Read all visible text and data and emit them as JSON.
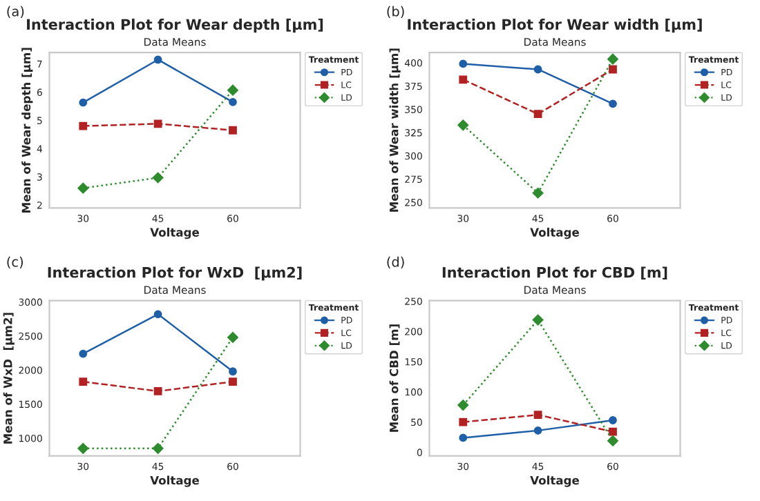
{
  "chart_data": [
    {
      "type": "line",
      "title": "Interaction Plot for Wear depth [µm]",
      "subtitle": "Data Means",
      "xlabel": "Voltage",
      "ylabel": "Mean of Wear depth [µm]",
      "legend_title": "Treatment",
      "annotations": [
        "(a)"
      ],
      "categories": [
        "30",
        "45",
        "60"
      ],
      "ylim": [
        1.9,
        7.4
      ],
      "yticks": [
        2,
        3,
        4,
        5,
        6,
        7
      ],
      "grid": false,
      "legend": "top right",
      "series": [
        {
          "name": "PD",
          "color": "#1f5fa8",
          "marker": "circle",
          "line_style": "solid",
          "values": [
            5.63,
            7.15,
            5.65
          ]
        },
        {
          "name": "LC",
          "color": "#b22222",
          "marker": "square",
          "line_style": "dashed",
          "values": [
            4.8,
            4.88,
            4.65
          ]
        },
        {
          "name": "LD",
          "color": "#2e8b2e",
          "marker": "diamond",
          "line_style": "dotted",
          "values": [
            2.6,
            2.97,
            6.07
          ]
        }
      ]
    },
    {
      "type": "line",
      "title": "Interaction Plot for Wear width [µm]",
      "subtitle": "Data Means",
      "xlabel": "Voltage",
      "ylabel": "Mean of Wear width [µm]",
      "legend_title": "Treatment",
      "annotations": [
        "(b)"
      ],
      "categories": [
        "30",
        "45",
        "60"
      ],
      "ylim": [
        244,
        411
      ],
      "yticks": [
        250,
        275,
        300,
        325,
        350,
        375,
        400
      ],
      "grid": false,
      "legend": "top right",
      "series": [
        {
          "name": "PD",
          "color": "#1f5fa8",
          "marker": "circle",
          "line_style": "solid",
          "values": [
            399,
            393,
            356
          ]
        },
        {
          "name": "LC",
          "color": "#b22222",
          "marker": "square",
          "line_style": "dashed",
          "values": [
            382,
            345,
            393
          ]
        },
        {
          "name": "LD",
          "color": "#2e8b2e",
          "marker": "diamond",
          "line_style": "dotted",
          "values": [
            333,
            260,
            404
          ]
        }
      ]
    },
    {
      "type": "line",
      "title": "Interaction Plot for WxD  [µm2]",
      "subtitle": "Data Means",
      "xlabel": "Voltage",
      "ylabel": "Mean of WxD  [µm2]",
      "legend_title": "Treatment",
      "annotations": [
        "(c)"
      ],
      "categories": [
        "30",
        "45",
        "60"
      ],
      "ylim": [
        740,
        3020
      ],
      "yticks": [
        1000,
        1500,
        2000,
        2500,
        3000
      ],
      "grid": false,
      "legend": "top right",
      "series": [
        {
          "name": "PD",
          "color": "#1f5fa8",
          "marker": "circle",
          "line_style": "solid",
          "values": [
            2240,
            2820,
            1980
          ]
        },
        {
          "name": "LC",
          "color": "#b22222",
          "marker": "square",
          "line_style": "dashed",
          "values": [
            1830,
            1690,
            1830
          ]
        },
        {
          "name": "LD",
          "color": "#2e8b2e",
          "marker": "diamond",
          "line_style": "dotted",
          "values": [
            850,
            850,
            2480
          ]
        }
      ]
    },
    {
      "type": "line",
      "title": "Interaction Plot for CBD [m]",
      "subtitle": "Data Means",
      "xlabel": "Voltage",
      "ylabel": "Mean of CBD [m]",
      "legend_title": "Treatment",
      "annotations": [
        "(d)"
      ],
      "categories": [
        "30",
        "45",
        "60"
      ],
      "ylim": [
        -6,
        251
      ],
      "yticks": [
        0,
        50,
        100,
        150,
        200,
        250
      ],
      "grid": false,
      "legend": "top right",
      "series": [
        {
          "name": "PD",
          "color": "#1f5fa8",
          "marker": "circle",
          "line_style": "solid",
          "values": [
            24,
            36,
            53
          ]
        },
        {
          "name": "LC",
          "color": "#b22222",
          "marker": "square",
          "line_style": "dashed",
          "values": [
            50,
            62,
            34
          ]
        },
        {
          "name": "LD",
          "color": "#2e8b2e",
          "marker": "diamond",
          "line_style": "dotted",
          "values": [
            78,
            219,
            19
          ]
        }
      ]
    }
  ]
}
